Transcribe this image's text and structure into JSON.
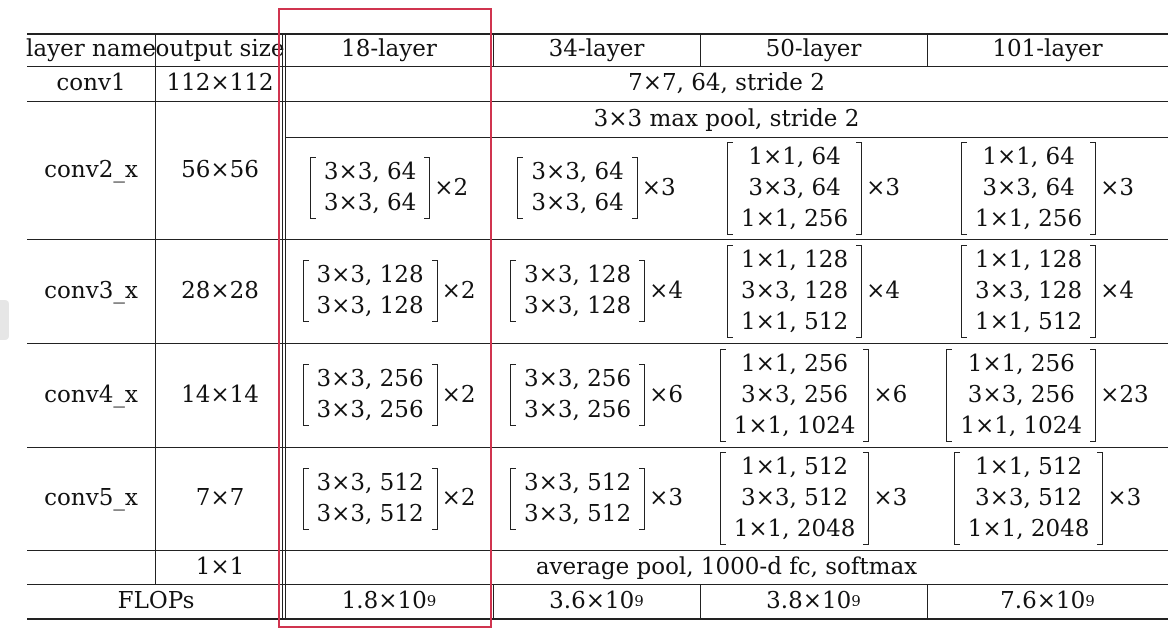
{
  "table": {
    "headers": [
      "layer name",
      "output size",
      "18-layer",
      "34-layer",
      "50-layer",
      "101-layer"
    ],
    "conv1": {
      "name": "conv1",
      "output": "112×112",
      "spec": "7×7, 64, stride 2"
    },
    "maxpool": "3×3 max pool, stride 2",
    "conv2_x": {
      "name": "conv2_x",
      "output": "56×56",
      "blocks": [
        {
          "lines": [
            "3×3, 64",
            "3×3, 64"
          ],
          "mult": "×2"
        },
        {
          "lines": [
            "3×3, 64",
            "3×3, 64"
          ],
          "mult": "×3"
        },
        {
          "lines": [
            "1×1, 64",
            "3×3, 64",
            "1×1, 256"
          ],
          "mult": "×3"
        },
        {
          "lines": [
            "1×1, 64",
            "3×3, 64",
            "1×1, 256"
          ],
          "mult": "×3"
        }
      ]
    },
    "conv3_x": {
      "name": "conv3_x",
      "output": "28×28",
      "blocks": [
        {
          "lines": [
            "3×3, 128",
            "3×3, 128"
          ],
          "mult": "×2"
        },
        {
          "lines": [
            "3×3, 128",
            "3×3, 128"
          ],
          "mult": "×4"
        },
        {
          "lines": [
            "1×1, 128",
            "3×3, 128",
            "1×1, 512"
          ],
          "mult": "×4"
        },
        {
          "lines": [
            "1×1, 128",
            "3×3, 128",
            "1×1, 512"
          ],
          "mult": "×4"
        }
      ]
    },
    "conv4_x": {
      "name": "conv4_x",
      "output": "14×14",
      "blocks": [
        {
          "lines": [
            "3×3, 256",
            "3×3, 256"
          ],
          "mult": "×2"
        },
        {
          "lines": [
            "3×3, 256",
            "3×3, 256"
          ],
          "mult": "×6"
        },
        {
          "lines": [
            "1×1, 256",
            "3×3, 256",
            "1×1, 1024"
          ],
          "mult": "×6"
        },
        {
          "lines": [
            "1×1, 256",
            "3×3, 256",
            "1×1, 1024"
          ],
          "mult": "×23"
        }
      ]
    },
    "conv5_x": {
      "name": "conv5_x",
      "output": "7×7",
      "blocks": [
        {
          "lines": [
            "3×3, 512",
            "3×3, 512"
          ],
          "mult": "×2"
        },
        {
          "lines": [
            "3×3, 512",
            "3×3, 512"
          ],
          "mult": "×3"
        },
        {
          "lines": [
            "1×1, 512",
            "3×3, 512",
            "1×1, 2048"
          ],
          "mult": "×3"
        },
        {
          "lines": [
            "1×1, 512",
            "3×3, 512",
            "1×1, 2048"
          ],
          "mult": "×3"
        }
      ]
    },
    "final": {
      "output": "1×1",
      "spec": "average pool, 1000-d fc, softmax"
    },
    "flops": {
      "label": "FLOPs",
      "values": [
        {
          "base": "1.8×10",
          "exp": "9"
        },
        {
          "base": "3.6×10",
          "exp": "9"
        },
        {
          "base": "3.8×10",
          "exp": "9"
        },
        {
          "base": "7.6×10",
          "exp": "9"
        }
      ]
    }
  },
  "highlight": {
    "column": "18-layer",
    "color": "#d0344f"
  }
}
